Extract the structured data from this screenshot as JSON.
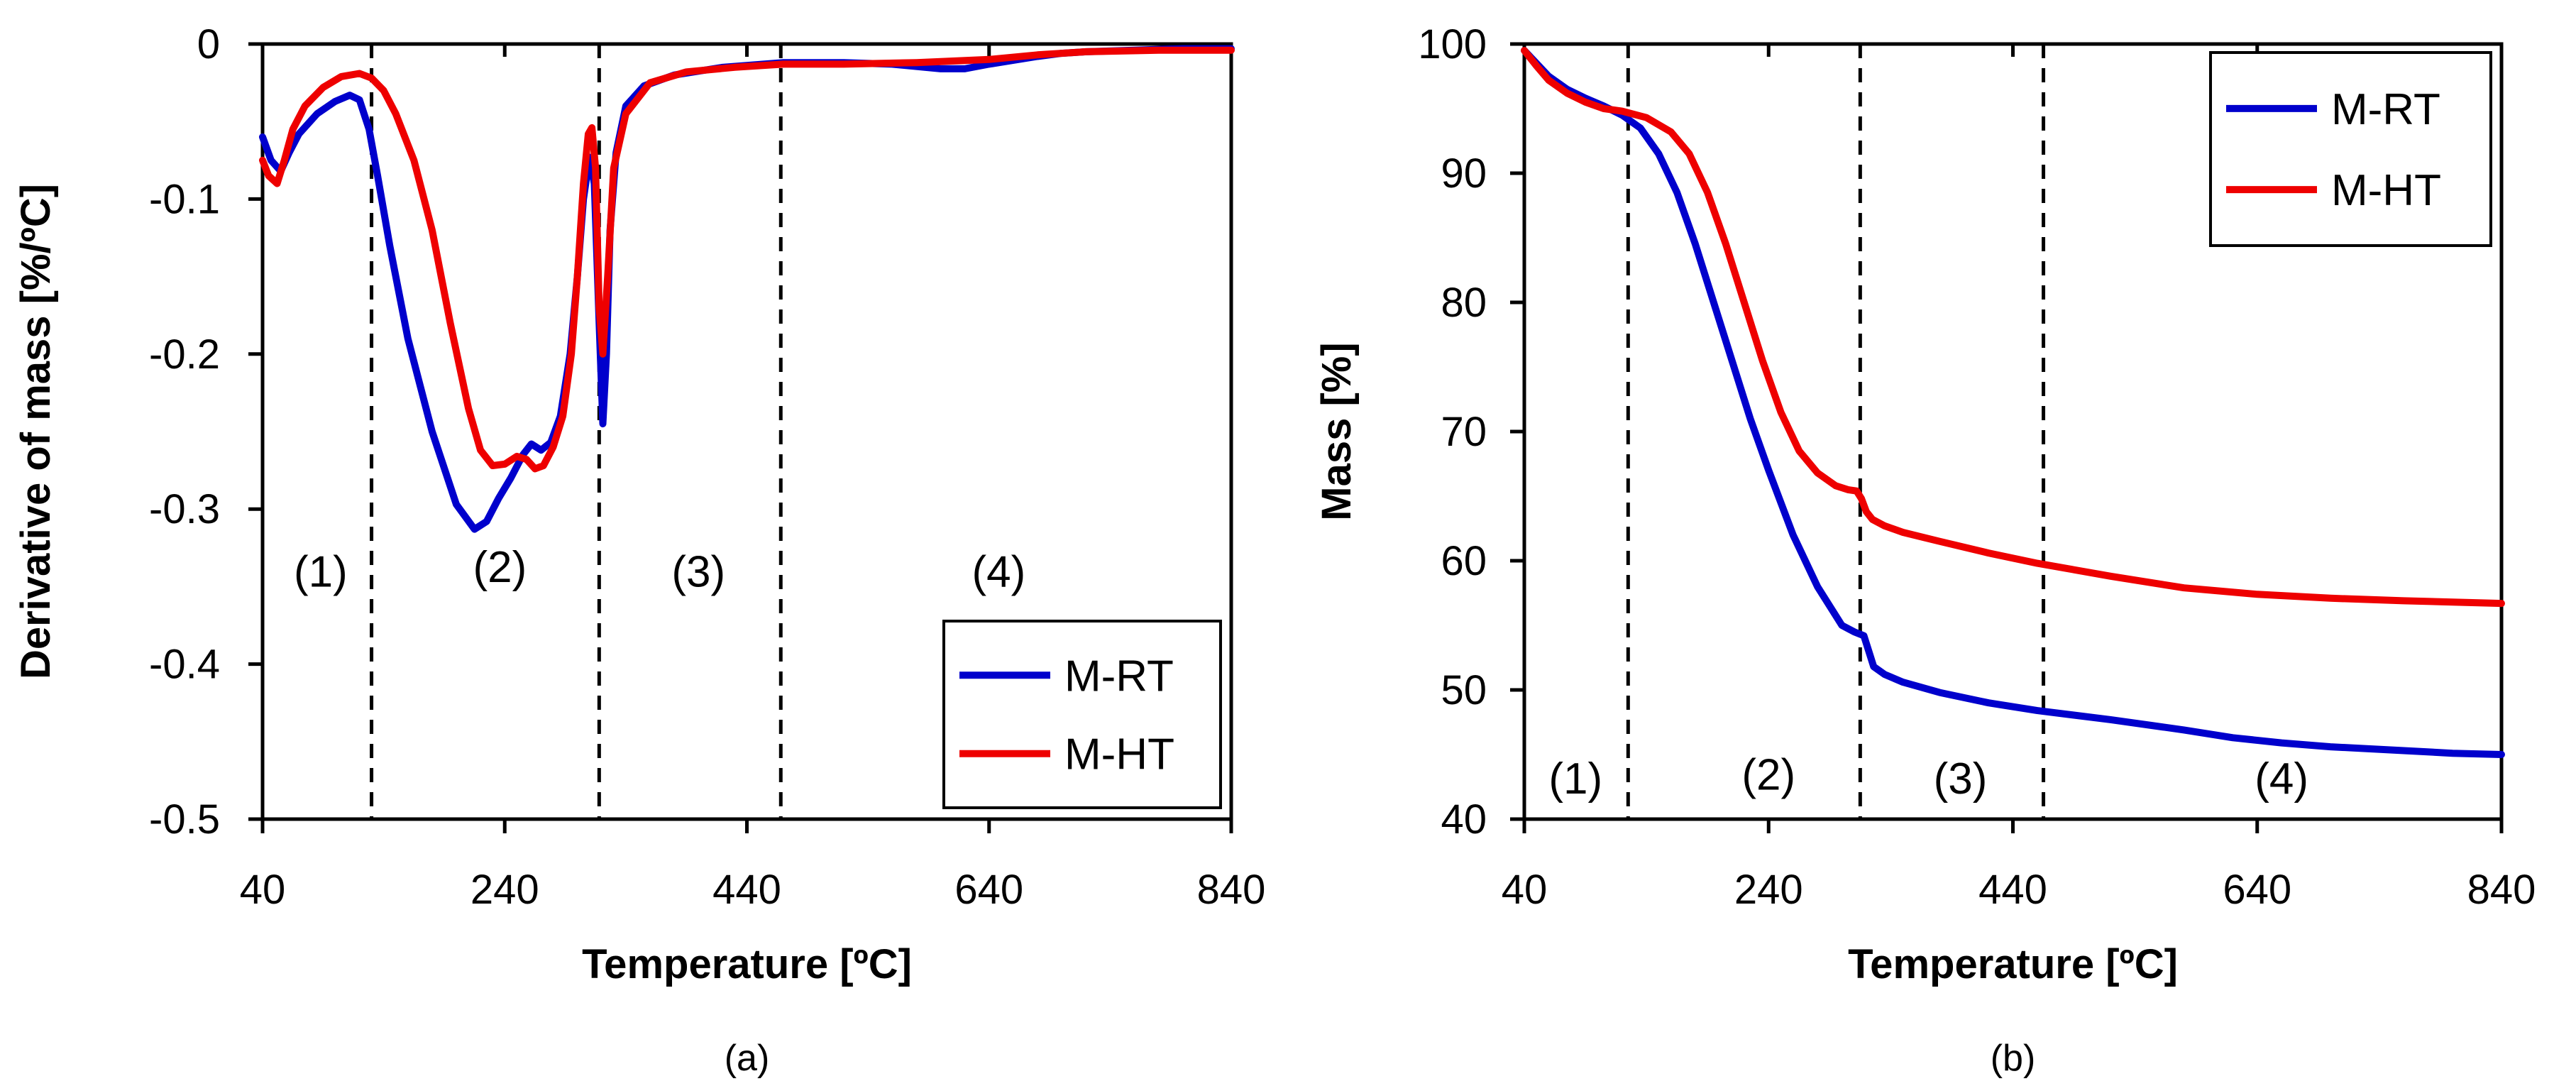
{
  "chart_data": [
    {
      "type": "line",
      "panel_label": "(a)",
      "xlabel": "Temperature [ºC]",
      "ylabel": "Derivative of mass [%/ºC]",
      "xlim": [
        40,
        840
      ],
      "ylim": [
        -0.5,
        0
      ],
      "xticks": [
        "40",
        "240",
        "440",
        "640",
        "840"
      ],
      "yticks": [
        "0",
        "-0.1",
        "-0.2",
        "-0.3",
        "-0.4",
        "-0.5"
      ],
      "region_boundaries": [
        130,
        318,
        468
      ],
      "regions": [
        {
          "label": "(1)",
          "x": 88,
          "y": -0.34
        },
        {
          "label": "(2)",
          "x": 236,
          "y": -0.337
        },
        {
          "label": "(3)",
          "x": 400,
          "y": -0.34
        },
        {
          "label": "(4)",
          "x": 648,
          "y": -0.34
        }
      ],
      "legend_position": "bottom-right",
      "series": [
        {
          "name": "M-RT",
          "color": "#0000cc",
          "x": [
            40,
            47,
            55,
            62,
            70,
            85,
            100,
            112,
            120,
            128,
            135,
            145,
            160,
            180,
            200,
            215,
            225,
            235,
            245,
            255,
            262,
            270,
            278,
            286,
            294,
            300,
            305,
            310,
            314,
            318,
            321,
            324,
            327,
            332,
            340,
            355,
            380,
            420,
            470,
            520,
            560,
            600,
            620,
            640,
            680,
            700,
            720,
            760,
            800,
            840
          ],
          "y": [
            -0.06,
            -0.075,
            -0.082,
            -0.07,
            -0.058,
            -0.045,
            -0.037,
            -0.033,
            -0.036,
            -0.055,
            -0.085,
            -0.13,
            -0.19,
            -0.25,
            -0.297,
            -0.313,
            -0.308,
            -0.293,
            -0.28,
            -0.265,
            -0.258,
            -0.262,
            -0.257,
            -0.24,
            -0.2,
            -0.15,
            -0.1,
            -0.073,
            -0.09,
            -0.18,
            -0.245,
            -0.2,
            -0.12,
            -0.07,
            -0.04,
            -0.027,
            -0.02,
            -0.015,
            -0.012,
            -0.012,
            -0.013,
            -0.016,
            -0.016,
            -0.013,
            -0.008,
            -0.006,
            -0.005,
            -0.004,
            -0.003,
            -0.003
          ]
        },
        {
          "name": "M-HT",
          "color": "#ee0000",
          "x": [
            40,
            45,
            52,
            58,
            65,
            75,
            90,
            105,
            120,
            130,
            140,
            150,
            165,
            180,
            195,
            210,
            220,
            230,
            240,
            250,
            258,
            265,
            272,
            280,
            288,
            295,
            300,
            305,
            309,
            312,
            315,
            318,
            321,
            325,
            330,
            340,
            360,
            390,
            430,
            470,
            520,
            580,
            640,
            680,
            720,
            780,
            840
          ],
          "y": [
            -0.075,
            -0.085,
            -0.09,
            -0.075,
            -0.055,
            -0.04,
            -0.028,
            -0.021,
            -0.019,
            -0.022,
            -0.03,
            -0.045,
            -0.075,
            -0.12,
            -0.18,
            -0.235,
            -0.262,
            -0.272,
            -0.271,
            -0.266,
            -0.268,
            -0.274,
            -0.272,
            -0.26,
            -0.24,
            -0.2,
            -0.15,
            -0.09,
            -0.058,
            -0.054,
            -0.08,
            -0.17,
            -0.2,
            -0.15,
            -0.08,
            -0.045,
            -0.025,
            -0.018,
            -0.015,
            -0.013,
            -0.013,
            -0.012,
            -0.01,
            -0.007,
            -0.005,
            -0.004,
            -0.004
          ]
        }
      ]
    },
    {
      "type": "line",
      "panel_label": "(b)",
      "xlabel": "Temperature [ºC]",
      "ylabel": "Mass [%]",
      "xlim": [
        40,
        840
      ],
      "ylim": [
        40,
        100
      ],
      "xticks": [
        "40",
        "240",
        "440",
        "640",
        "840"
      ],
      "yticks": [
        "100",
        "90",
        "80",
        "70",
        "60",
        "50",
        "40"
      ],
      "region_boundaries": [
        125,
        315,
        465
      ],
      "regions": [
        {
          "label": "(1)",
          "x": 82,
          "y": 43.2
        },
        {
          "label": "(2)",
          "x": 240,
          "y": 43.5
        },
        {
          "label": "(3)",
          "x": 397,
          "y": 43.2
        },
        {
          "label": "(4)",
          "x": 660,
          "y": 43.2
        }
      ],
      "legend_position": "top-right",
      "series": [
        {
          "name": "M-RT",
          "color": "#0000cc",
          "x": [
            40,
            50,
            60,
            75,
            90,
            105,
            120,
            135,
            150,
            165,
            180,
            195,
            210,
            225,
            240,
            260,
            280,
            300,
            310,
            318,
            322,
            326,
            335,
            350,
            380,
            420,
            460,
            520,
            580,
            620,
            660,
            700,
            760,
            800,
            840
          ],
          "y": [
            99.5,
            98.5,
            97.5,
            96.5,
            95.8,
            95.2,
            94.5,
            93.5,
            91.5,
            88.5,
            84.5,
            80,
            75.5,
            71,
            67,
            62,
            58,
            55,
            54.5,
            54.2,
            53,
            51.8,
            51.2,
            50.6,
            49.8,
            49,
            48.4,
            47.7,
            46.9,
            46.3,
            45.9,
            45.6,
            45.3,
            45.1,
            45
          ]
        },
        {
          "name": "M-HT",
          "color": "#ee0000",
          "x": [
            40,
            50,
            60,
            75,
            90,
            105,
            120,
            140,
            160,
            175,
            190,
            205,
            220,
            235,
            250,
            265,
            280,
            295,
            305,
            312,
            316,
            320,
            325,
            335,
            350,
            380,
            420,
            460,
            520,
            580,
            640,
            700,
            760,
            800,
            840
          ],
          "y": [
            99.5,
            98.3,
            97.2,
            96.2,
            95.5,
            95,
            94.8,
            94.3,
            93.2,
            91.5,
            88.5,
            84.5,
            80,
            75.5,
            71.5,
            68.5,
            66.8,
            65.8,
            65.5,
            65.4,
            64.8,
            63.8,
            63.2,
            62.7,
            62.2,
            61.5,
            60.6,
            59.8,
            58.8,
            57.9,
            57.4,
            57.1,
            56.9,
            56.8,
            56.7
          ]
        }
      ]
    }
  ]
}
